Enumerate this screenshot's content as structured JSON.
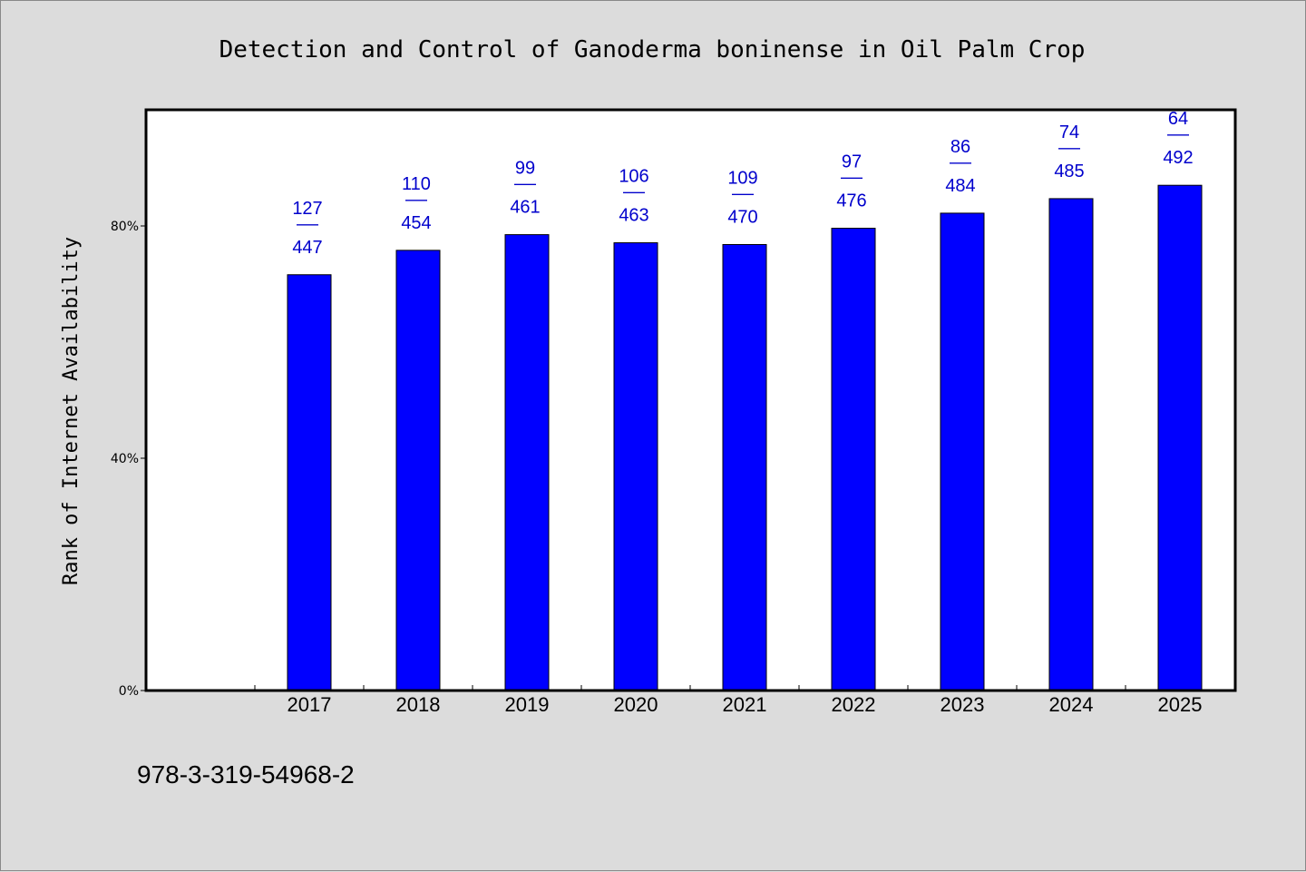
{
  "chart_data": {
    "type": "bar",
    "title": "Detection and Control of Ganoderma boninense in Oil Palm Crop",
    "ylabel": "Rank of Internet Availability",
    "xlabel": "",
    "categories": [
      "2017",
      "2018",
      "2019",
      "2020",
      "2021",
      "2022",
      "2023",
      "2024",
      "2025"
    ],
    "values": [
      71.6,
      75.8,
      78.5,
      77.1,
      76.8,
      79.6,
      82.2,
      84.7,
      87.0
    ],
    "labels_top": [
      "127",
      "110",
      "99",
      "106",
      "109",
      "97",
      "86",
      "74",
      "64"
    ],
    "labels_bottom": [
      "447",
      "454",
      "461",
      "463",
      "470",
      "476",
      "484",
      "485",
      "492"
    ],
    "label_separator": "——",
    "yticks": [
      0,
      40,
      80
    ],
    "ytick_labels": [
      "0%",
      "40%",
      "80%"
    ],
    "ylim": [
      0,
      100
    ],
    "bar_color": "#0000ff",
    "label_color": "#0000cc",
    "plot_background": "#ffffff",
    "page_background": "#dcdcdc",
    "grid": false,
    "legend": "none"
  },
  "footer": {
    "isbn": "978-3-319-54968-2"
  }
}
